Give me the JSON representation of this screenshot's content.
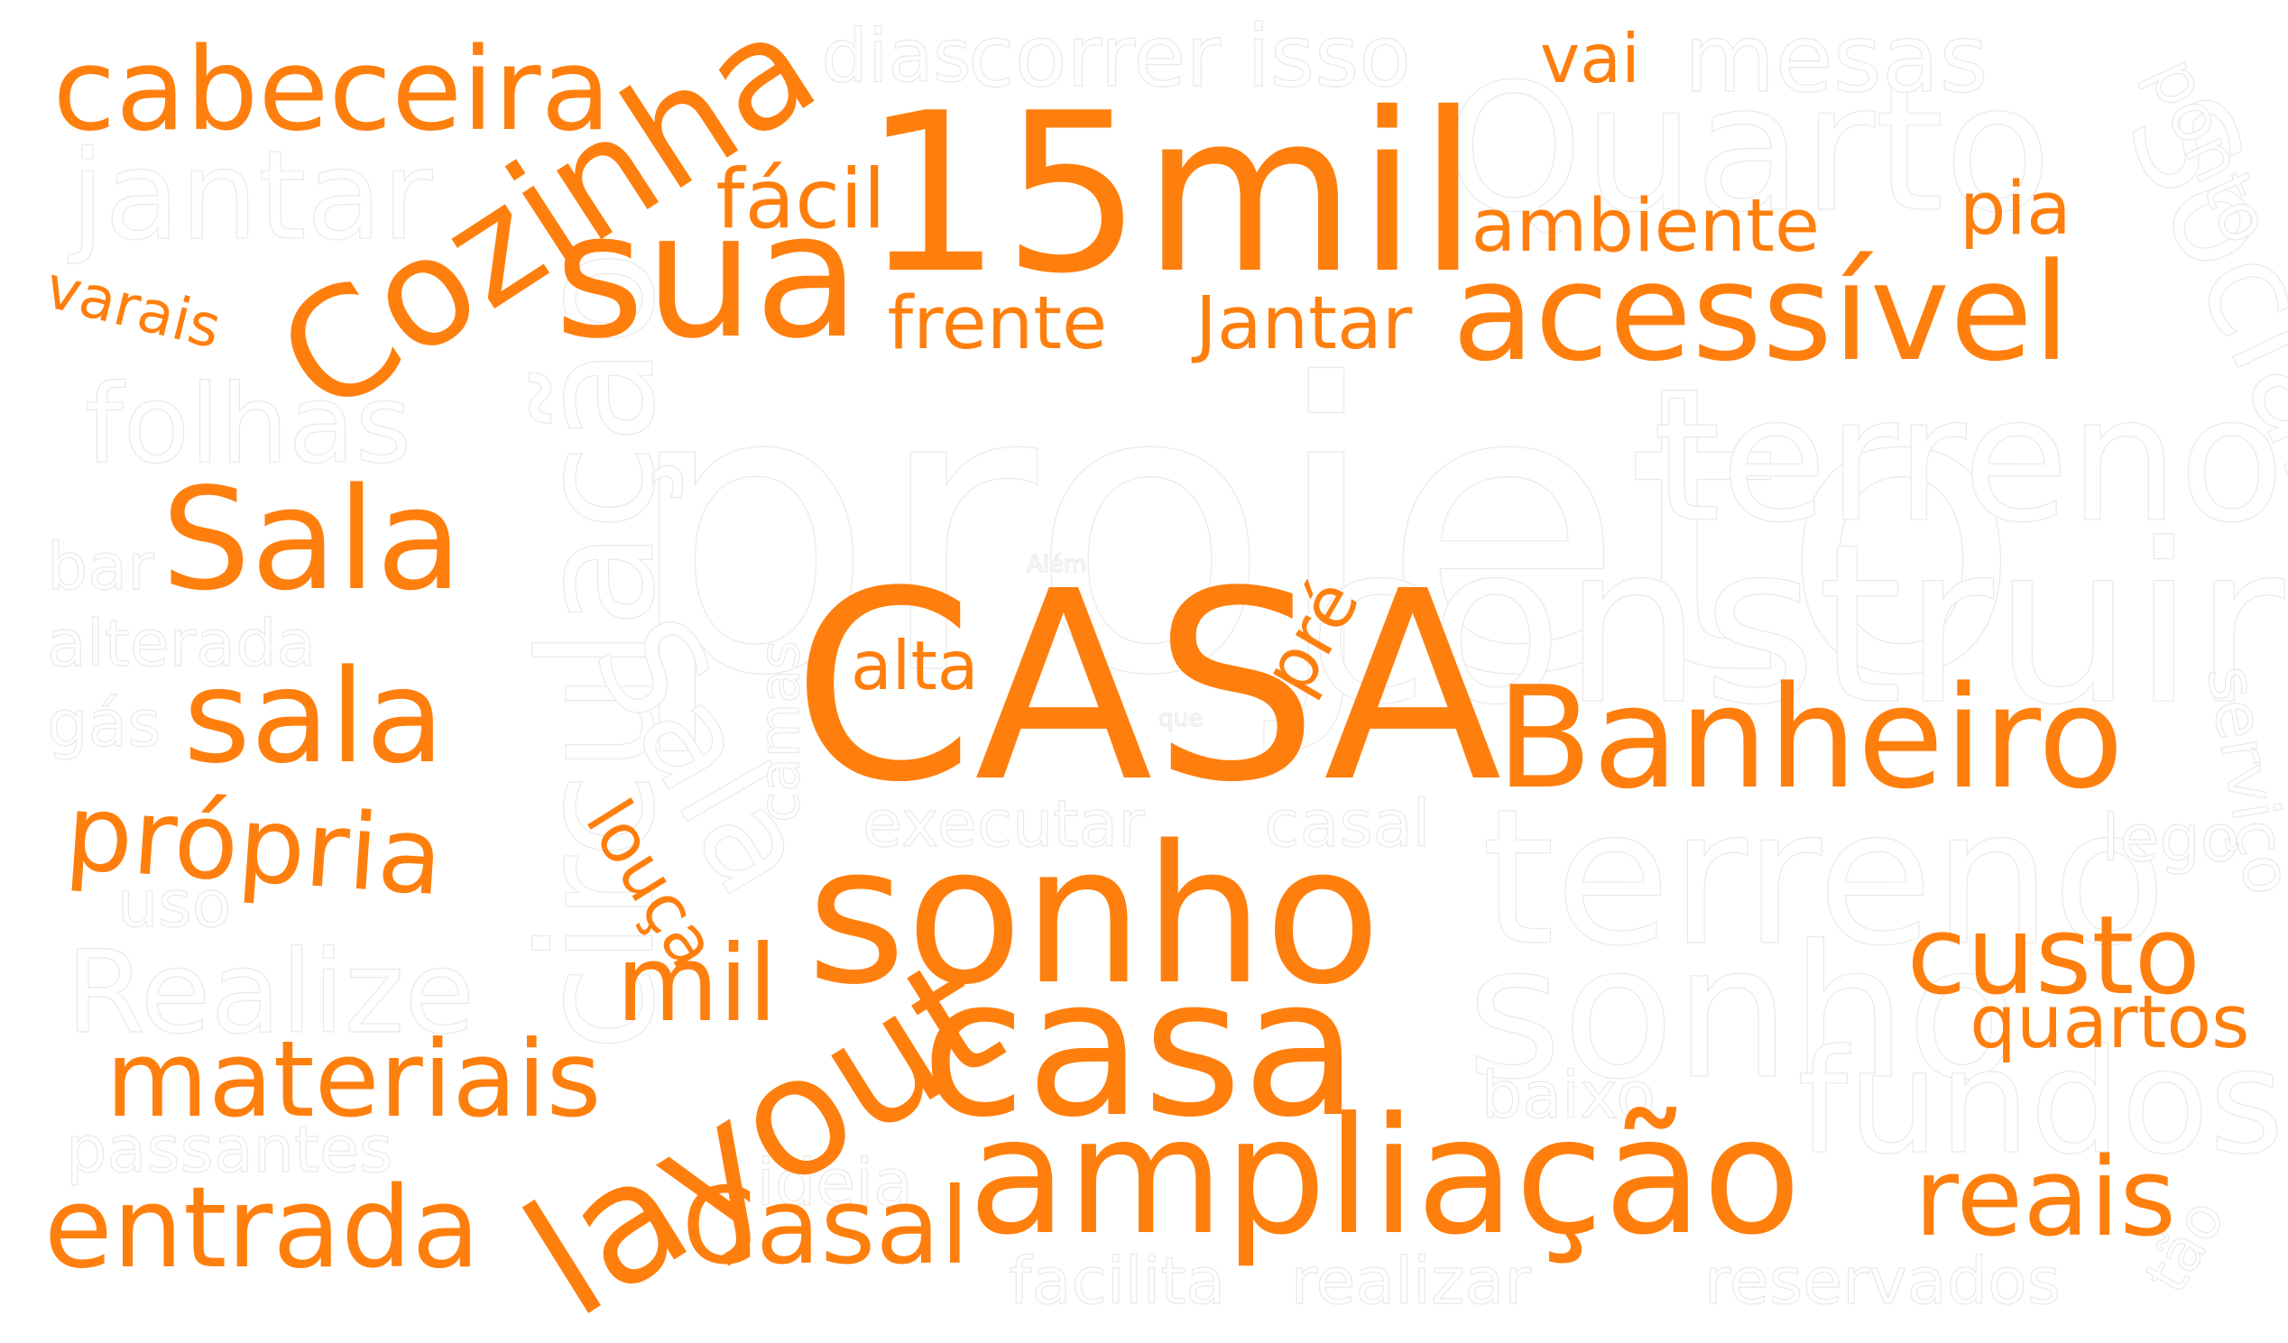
{
  "palette": {
    "highlight": "#ff7f0e",
    "background": "#ffffff",
    "ghost_outline": "#e9e9e9"
  },
  "words": {
    "projeto": "projeto",
    "construir": "construir",
    "terreno_top": "terreno",
    "terreno_mid": "terreno",
    "sonho_ghost": "sonho",
    "fundos": "fundos",
    "quarto": "Quarto",
    "social": "Social",
    "circulacao": "circulação",
    "sala_ghost": "Sala",
    "jantar_ghost": "jantar",
    "mesas": "mesas",
    "correr": "correr",
    "isso": "isso",
    "dias": "dias",
    "ponto": "ponto",
    "folhas": "folhas",
    "bar": "bar",
    "alterada": "alterada",
    "gas": "gás",
    "uso": "uso",
    "realize": "Realize",
    "passantes": "passantes",
    "camas": "camas",
    "alem": "Além",
    "que": "que",
    "executar": "executar",
    "casal_ghost": "casal",
    "lego": "lego",
    "servico": "serviço",
    "baixo": "baixo",
    "ideia": "ideia",
    "facilita": "facilita",
    "realizar": "realizar",
    "reservados": "reservados",
    "tao": "tão",
    "cabeceira": "cabeceira",
    "cozinha": "Cozinha",
    "fifteen_mil": "15mil",
    "sua": "sua",
    "facil": "fácil",
    "frente": "frente",
    "jantar": "Jantar",
    "vai": "vai",
    "ambiente": "ambiente",
    "pia": "pia",
    "acessivel": "acessível",
    "varais": "varais",
    "sala_upper": "Sala",
    "sala_lower": "sala",
    "propria": "própria",
    "casa_upper": "CASA",
    "alta": "alta",
    "pre": "pré",
    "banheiro": "Banheiro",
    "louca": "louça",
    "sonho": "sonho",
    "mil": "mil",
    "custo": "custo",
    "quartos": "quartos",
    "materiais": "materiais",
    "layout": "layout",
    "casa_lower": "casa",
    "entrada": "entrada",
    "casal": "Casal",
    "ampliacao": "ampliação",
    "reais": "reais"
  }
}
